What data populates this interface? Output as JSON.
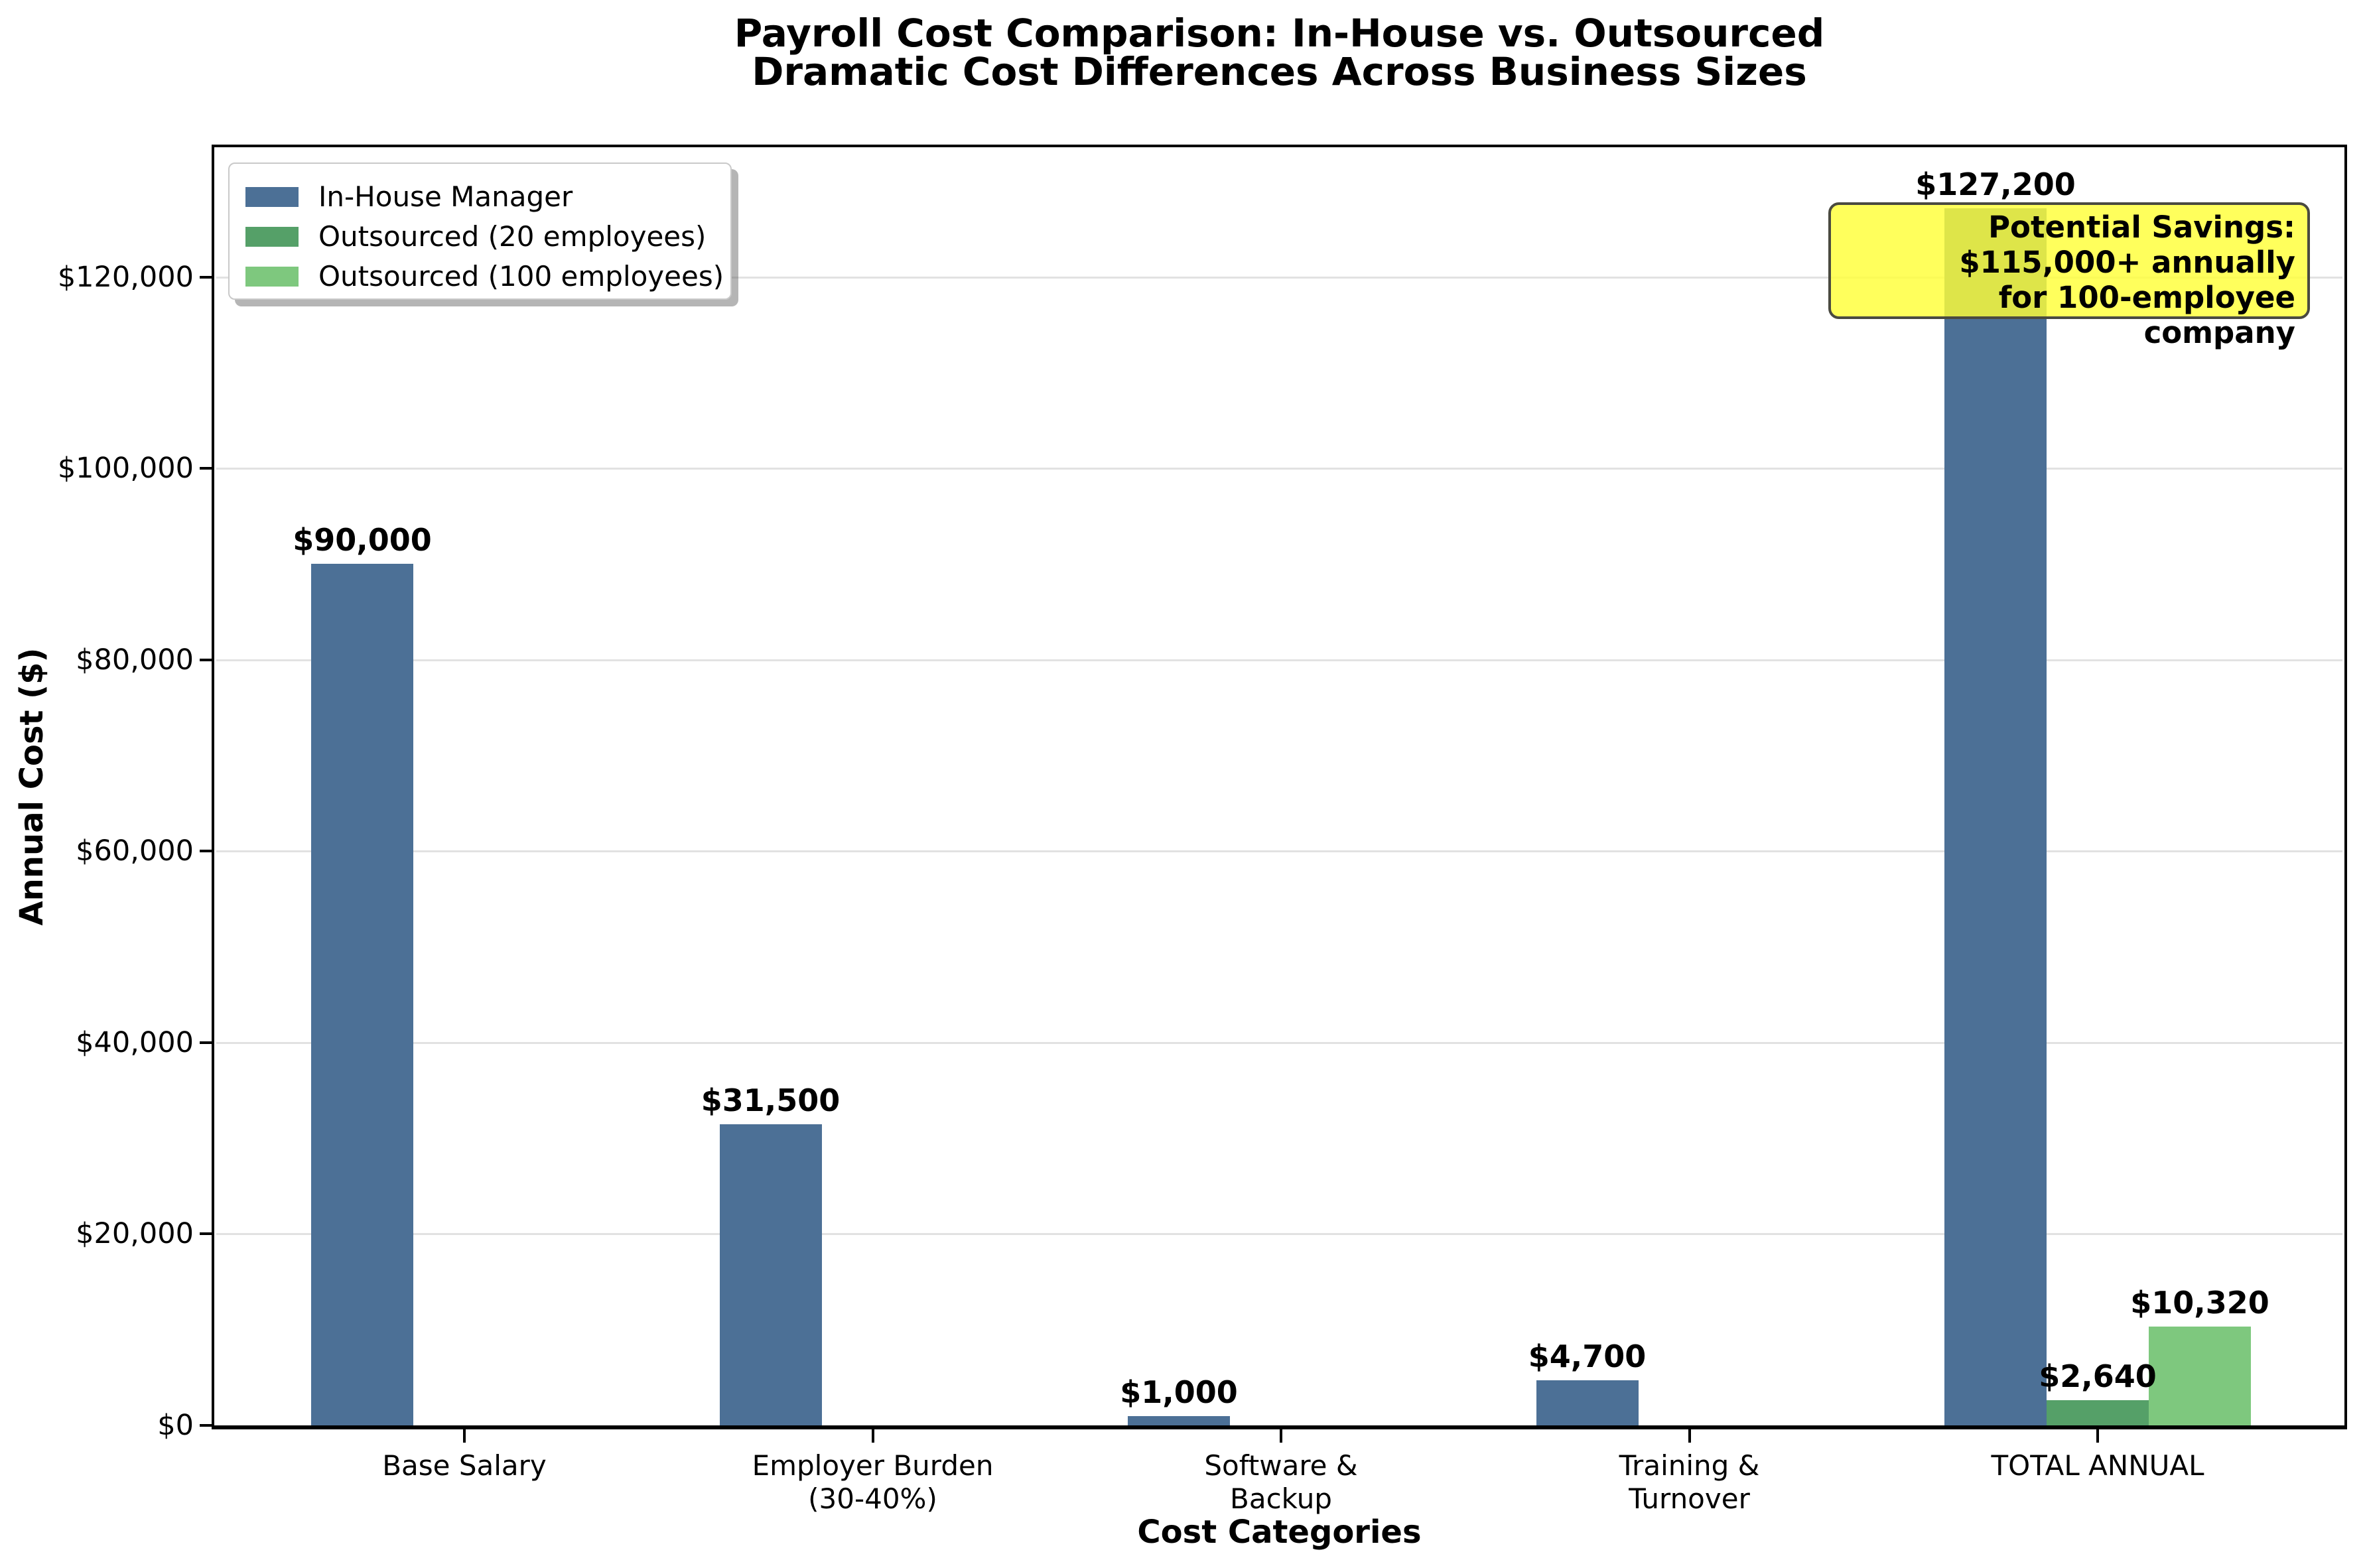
{
  "title": {
    "line1": "Payroll Cost Comparison: In-House vs. Outsourced",
    "line2": "Dramatic Cost Differences Across Business Sizes"
  },
  "axes": {
    "x_label": "Cost Categories",
    "y_label": "Annual Cost ($)"
  },
  "annotation": {
    "lines": [
      "Potential Savings:",
      "$115,000+ annually",
      "for 100-employee company"
    ],
    "bg_color": "#FFFF38",
    "border_color": "#4A4A40"
  },
  "chart_data": {
    "type": "bar",
    "title": "Payroll Cost Comparison: In-House vs. Outsourced",
    "subtitle": "Dramatic Cost Differences Across Business Sizes",
    "xlabel": "Cost Categories",
    "ylabel": "Annual Cost ($)",
    "grid": true,
    "legend_position": "upper left",
    "ylim": [
      0,
      133560
    ],
    "categories": [
      [
        "Base Salary"
      ],
      [
        "Employer Burden",
        "(30-40%)"
      ],
      [
        "Software &",
        "Backup"
      ],
      [
        "Training &",
        "Turnover"
      ],
      [
        "TOTAL ANNUAL"
      ]
    ],
    "yticks": [
      {
        "value": 0,
        "label": "$0"
      },
      {
        "value": 20000,
        "label": "$20,000"
      },
      {
        "value": 40000,
        "label": "$40,000"
      },
      {
        "value": 60000,
        "label": "$60,000"
      },
      {
        "value": 80000,
        "label": "$80,000"
      },
      {
        "value": 100000,
        "label": "$100,000"
      },
      {
        "value": 120000,
        "label": "$120,000"
      }
    ],
    "series": [
      {
        "name": "In-House Manager",
        "color": "#4C7096",
        "values": [
          90000,
          31500,
          1000,
          4700,
          127200
        ],
        "labels": [
          "$90,000",
          "$31,500",
          "$1,000",
          "$4,700",
          "$127,200"
        ]
      },
      {
        "name": "Outsourced (20 employees)",
        "color": "#55A068",
        "values": [
          0,
          0,
          0,
          0,
          2640
        ],
        "labels": [
          "",
          "",
          "",
          "",
          "$2,640"
        ]
      },
      {
        "name": "Outsourced (100 employees)",
        "color": "#7EC87E",
        "values": [
          0,
          0,
          0,
          0,
          10320
        ],
        "labels": [
          "",
          "",
          "",
          "",
          "$10,320"
        ]
      }
    ]
  }
}
